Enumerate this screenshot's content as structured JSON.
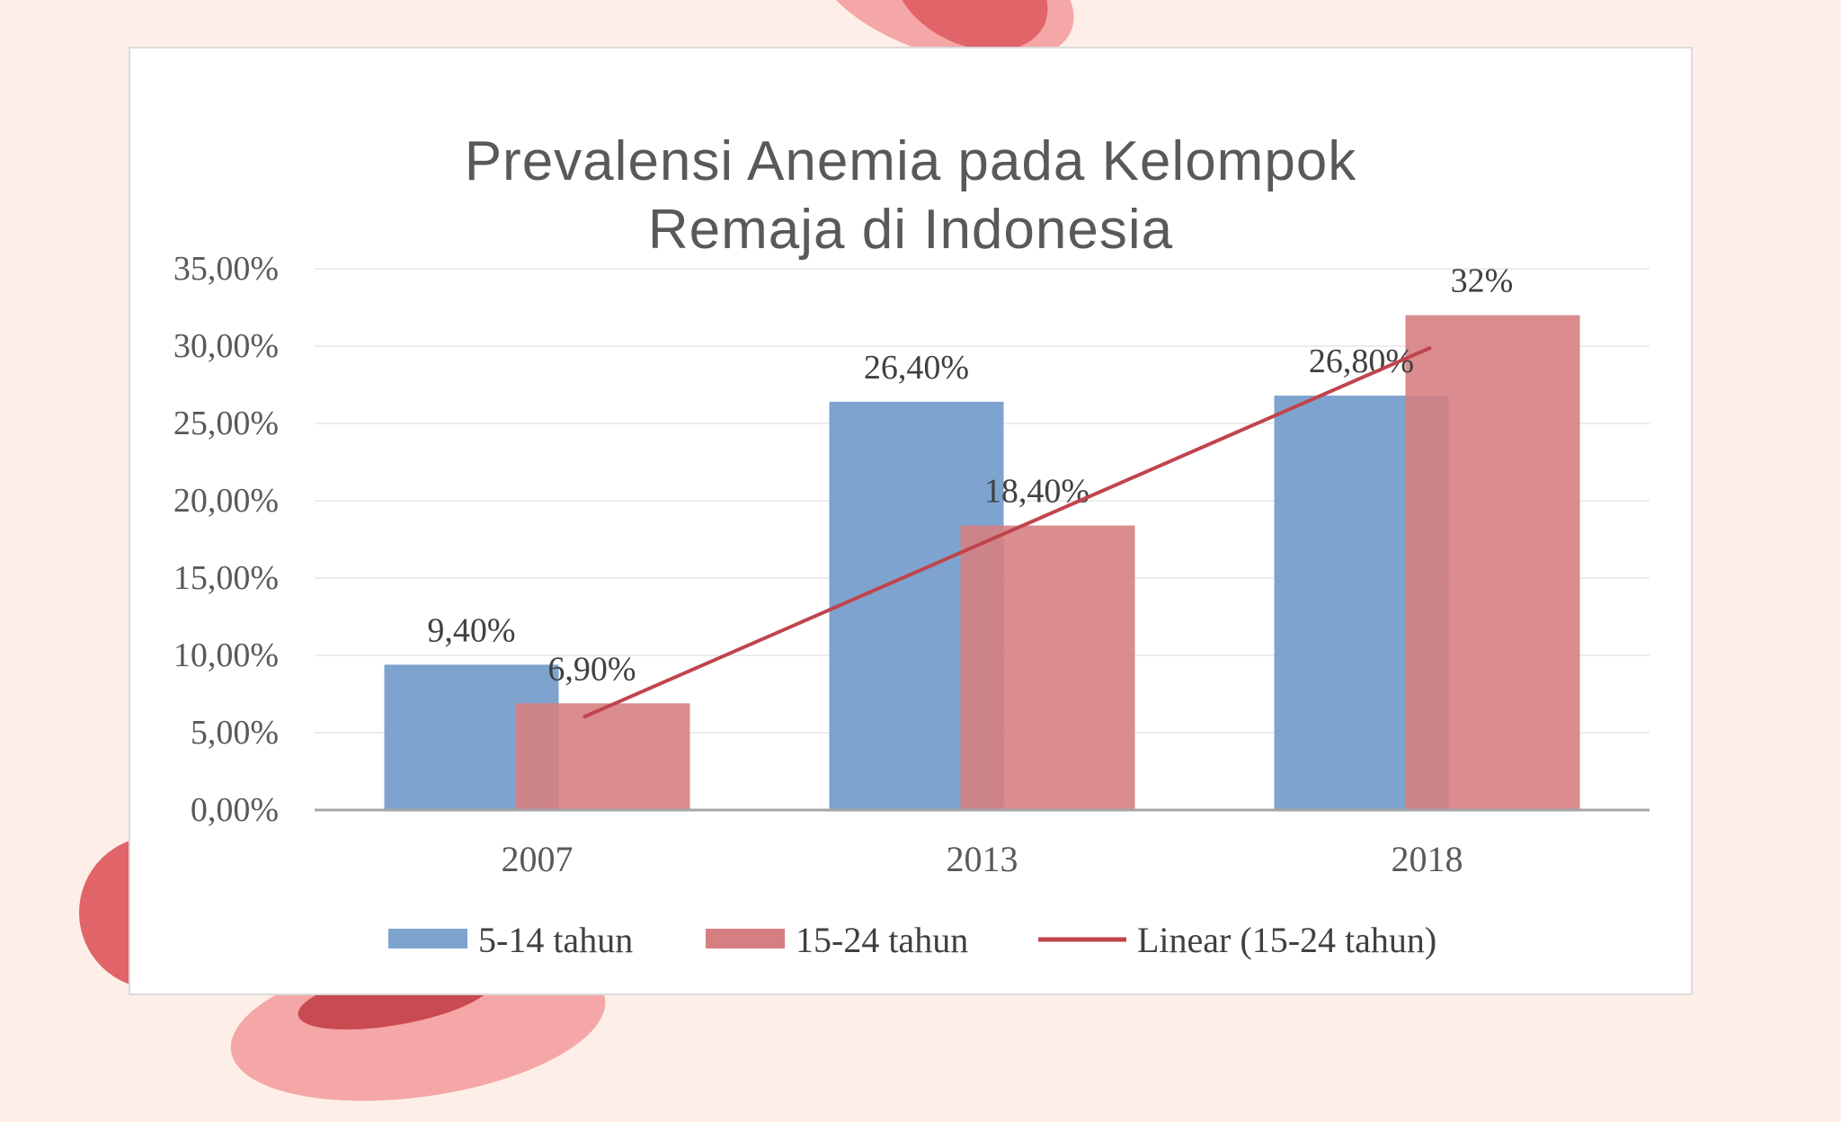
{
  "background": {
    "color": "#fdeee8",
    "accent_shapes": [
      "#e06468",
      "#f4a7a6",
      "#c94b52"
    ]
  },
  "chart_data": {
    "type": "bar",
    "title_lines": [
      "Prevalensi Anemia pada Kelompok",
      "Remaja di Indonesia"
    ],
    "categories": [
      "2007",
      "2013",
      "2018"
    ],
    "series": [
      {
        "name": "5-14 tahun",
        "color": "#7ea3cf",
        "values": [
          9.4,
          26.4,
          26.8
        ],
        "labels": [
          "9,40%",
          "26,40%",
          "26,80%"
        ]
      },
      {
        "name": "15-24 tahun",
        "color": "#d67f82",
        "values": [
          6.9,
          18.4,
          32
        ],
        "labels": [
          "6,90%",
          "18,40%",
          "32%"
        ]
      }
    ],
    "trendline": {
      "name": "Linear (15-24 tahun)",
      "of_series": "15-24 tahun",
      "color": "#c0444d"
    },
    "y_ticks": [
      {
        "value": 0,
        "label": "0,00%"
      },
      {
        "value": 5,
        "label": "5,00%"
      },
      {
        "value": 10,
        "label": "10,00%"
      },
      {
        "value": 15,
        "label": "15,00%"
      },
      {
        "value": 20,
        "label": "20,00%"
      },
      {
        "value": 25,
        "label": "25,00%"
      },
      {
        "value": 30,
        "label": "30,00%"
      },
      {
        "value": 35,
        "label": "35,00%"
      }
    ],
    "ylim": [
      0,
      35
    ],
    "grid": true,
    "legend": "bottom"
  }
}
